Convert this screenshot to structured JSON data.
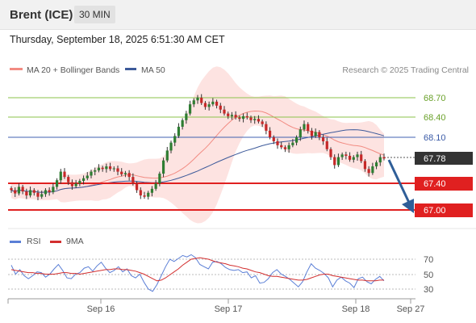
{
  "header": {
    "instrument": "Brent (ICE)",
    "timeframe": "30 MIN"
  },
  "timestamp": "Thursday, September 18, 2025 6:51:30 AM CET",
  "legend": {
    "ma20": "MA 20 + Bollinger Bands",
    "ma50": "MA 50",
    "credit": "Research © 2025 Trading Central",
    "rsi": "RSI",
    "rsi_ma": "9MA"
  },
  "colors": {
    "ma20": "#f28b82",
    "bollinger_fill": "#fde3e1",
    "ma50": "#3d5a9a",
    "rsi": "#5b7fd6",
    "rsi_ma": "#d32f2f",
    "green_level": "#8bc34a",
    "blue_level": "#4060b0",
    "red_level": "#e02020",
    "current_price": "#333333",
    "arrow": "#2f5e98"
  },
  "chart_data": [
    {
      "type": "candlestick",
      "title": "Brent (ICE)",
      "timeframe": "30 MIN",
      "ylim": [
        66.9,
        69.1
      ],
      "x_ticks": [
        "Sep 16",
        "Sep 17",
        "Sep 18",
        "Sep 27"
      ],
      "levels": [
        {
          "label": "68.70",
          "value": 68.7,
          "kind": "resistance"
        },
        {
          "label": "68.40",
          "value": 68.4,
          "kind": "resistance"
        },
        {
          "label": "68.10",
          "value": 68.1,
          "kind": "pivot"
        },
        {
          "label": "67.78",
          "value": 67.78,
          "kind": "last-price"
        },
        {
          "label": "67.40",
          "value": 67.4,
          "kind": "support"
        },
        {
          "label": "67.00",
          "value": 67.0,
          "kind": "support"
        }
      ],
      "close_series": [
        67.3,
        67.25,
        67.35,
        67.28,
        67.22,
        67.3,
        67.26,
        67.2,
        67.24,
        67.3,
        67.27,
        67.35,
        67.45,
        67.58,
        67.5,
        67.42,
        67.36,
        67.4,
        67.44,
        67.48,
        67.52,
        67.58,
        67.6,
        67.64,
        67.62,
        67.66,
        67.62,
        67.63,
        67.58,
        67.54,
        67.56,
        67.5,
        67.4,
        67.3,
        67.22,
        67.2,
        67.26,
        67.32,
        67.4,
        67.55,
        67.75,
        67.9,
        68.02,
        68.12,
        68.26,
        68.36,
        68.46,
        68.6,
        68.66,
        68.7,
        68.62,
        68.56,
        68.6,
        68.64,
        68.58,
        68.52,
        68.46,
        68.42,
        68.44,
        68.4,
        68.38,
        68.42,
        68.4,
        68.36,
        68.38,
        68.34,
        68.3,
        68.2,
        68.1,
        68.04,
        67.98,
        67.95,
        67.92,
        67.98,
        68.02,
        68.1,
        68.22,
        68.3,
        68.2,
        68.12,
        68.18,
        68.1,
        68.04,
        67.92,
        67.8,
        67.68,
        67.8,
        67.84,
        67.82,
        67.76,
        67.8,
        67.84,
        67.74,
        67.62,
        67.56,
        67.66,
        67.72,
        67.8,
        67.78
      ],
      "series": [
        {
          "name": "MA 20 + Bollinger Bands"
        },
        {
          "name": "MA 50"
        }
      ],
      "annotation": "projected decline toward 67.00"
    },
    {
      "type": "line",
      "title": "RSI",
      "ylim": [
        20,
        80
      ],
      "y_ticks": [
        70,
        50,
        30
      ],
      "series": [
        {
          "name": "RSI",
          "values": [
            62,
            50,
            56,
            48,
            44,
            48,
            53,
            52,
            46,
            50,
            57,
            63,
            55,
            45,
            44,
            50,
            52,
            58,
            60,
            54,
            61,
            66,
            58,
            52,
            55,
            60,
            53,
            57,
            48,
            45,
            50,
            39,
            30,
            27,
            36,
            48,
            60,
            70,
            67,
            71,
            75,
            73,
            76,
            72,
            63,
            60,
            57,
            66,
            67,
            64,
            59,
            56,
            55,
            56,
            52,
            53,
            45,
            48,
            38,
            39,
            44,
            52,
            56,
            50,
            47,
            43,
            38,
            33,
            40,
            53,
            64,
            58,
            55,
            51,
            45,
            33,
            42,
            46,
            41,
            38,
            32,
            44,
            46,
            40,
            37,
            43,
            47,
            41
          ]
        },
        {
          "name": "9MA",
          "values": [
            56,
            55,
            54,
            53,
            52,
            52,
            51,
            51,
            50,
            50,
            50,
            51,
            52,
            52,
            51,
            51,
            50,
            51,
            52,
            53,
            54,
            55,
            56,
            56,
            57,
            57,
            56,
            56,
            55,
            54,
            52,
            50,
            47,
            44,
            41,
            42,
            45,
            49,
            53,
            57,
            62,
            66,
            70,
            71,
            72,
            71,
            70,
            68,
            66,
            65,
            64,
            62,
            61,
            60,
            58,
            57,
            55,
            53,
            52,
            50,
            48,
            47,
            47,
            46,
            45,
            44,
            43,
            42,
            42,
            43,
            45,
            47,
            49,
            50,
            50,
            48,
            47,
            46,
            45,
            44,
            43,
            42,
            42,
            41,
            41,
            41,
            42,
            42
          ]
        }
      ]
    }
  ]
}
